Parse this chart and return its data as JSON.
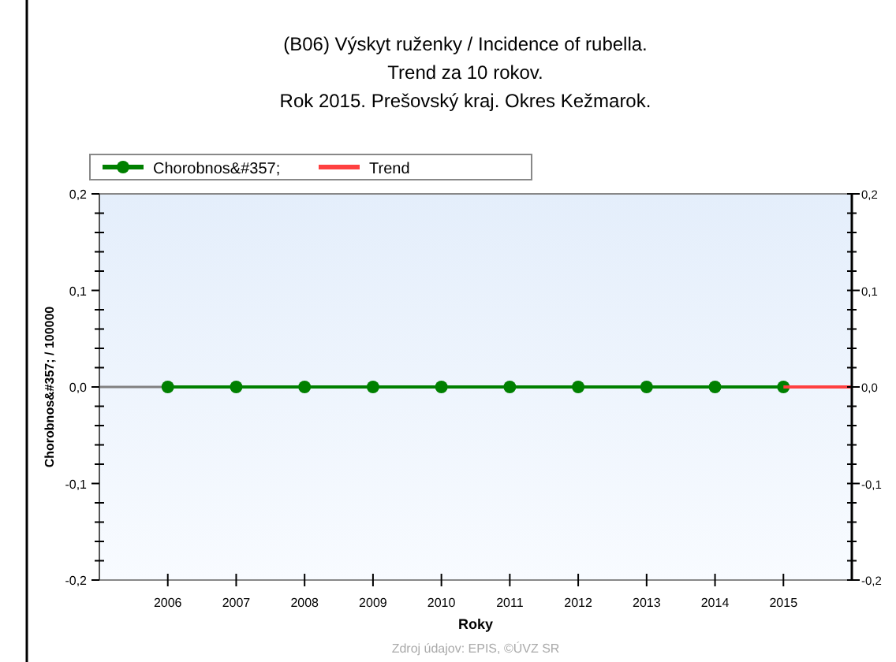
{
  "chart_data": {
    "type": "line",
    "title": "(B06) Výskyt ruženky / Incidence of rubella.\nTrend za 10 rokov.\nRok 2015. Prešovský kraj. Okres Kežmarok.",
    "xlabel": "Roky",
    "ylabel": "Chorobnos&#357; / 100000",
    "annotations": [
      "Zdroj údajov: EPIS, ©ÚVZ SR"
    ],
    "xlim": [
      2005,
      2016
    ],
    "xticks": [
      2006,
      2007,
      2008,
      2009,
      2010,
      2011,
      2012,
      2013,
      2014,
      2015
    ],
    "ylim": [
      -0.2,
      0.2
    ],
    "yticks": [
      {
        "value": -0.2,
        "label": "-0,2"
      },
      {
        "value": -0.18,
        "label": null
      },
      {
        "value": -0.16,
        "label": null
      },
      {
        "value": -0.14,
        "label": null
      },
      {
        "value": -0.12,
        "label": null
      },
      {
        "value": -0.1,
        "label": "-0,1"
      },
      {
        "value": -0.08,
        "label": null
      },
      {
        "value": -0.06,
        "label": null
      },
      {
        "value": -0.04,
        "label": null
      },
      {
        "value": -0.02,
        "label": null
      },
      {
        "value": 0,
        "label": "0,0"
      },
      {
        "value": 0.02,
        "label": null
      },
      {
        "value": 0.04,
        "label": null
      },
      {
        "value": 0.06,
        "label": null
      },
      {
        "value": 0.08,
        "label": null
      },
      {
        "value": 0.1,
        "label": "0,1"
      },
      {
        "value": 0.12,
        "label": null
      },
      {
        "value": 0.14,
        "label": null
      },
      {
        "value": 0.16,
        "label": null
      },
      {
        "value": 0.18,
        "label": null
      },
      {
        "value": 0.2,
        "label": "0,2"
      }
    ],
    "y2lim": [
      -0.2,
      0.2
    ],
    "y2ticks": [
      {
        "value": -0.2,
        "label": "-0,2"
      },
      {
        "value": -0.18,
        "label": null
      },
      {
        "value": -0.16,
        "label": null
      },
      {
        "value": -0.14,
        "label": null
      },
      {
        "value": -0.12,
        "label": null
      },
      {
        "value": -0.1,
        "label": "-0,1"
      },
      {
        "value": -0.08,
        "label": null
      },
      {
        "value": -0.06,
        "label": null
      },
      {
        "value": -0.04,
        "label": null
      },
      {
        "value": -0.02,
        "label": null
      },
      {
        "value": 0,
        "label": "0,0"
      },
      {
        "value": 0.02,
        "label": null
      },
      {
        "value": 0.04,
        "label": null
      },
      {
        "value": 0.06,
        "label": null
      },
      {
        "value": 0.08,
        "label": null
      },
      {
        "value": 0.1,
        "label": "0,1"
      },
      {
        "value": 0.12,
        "label": null
      },
      {
        "value": 0.14,
        "label": null
      },
      {
        "value": 0.16,
        "label": null
      },
      {
        "value": 0.18,
        "label": null
      },
      {
        "value": 0.2,
        "label": "0,2"
      }
    ],
    "ref_lines": [
      {
        "axis": "y",
        "value": 0,
        "color": "#808080"
      }
    ],
    "legend": "top left",
    "grid": false,
    "series": [
      {
        "name": "Chorobnos&#357;",
        "color": "#008000",
        "marker": "circle",
        "x": [
          2006,
          2007,
          2008,
          2009,
          2010,
          2011,
          2012,
          2013,
          2014,
          2015
        ],
        "values": [
          0,
          0,
          0,
          0,
          0,
          0,
          0,
          0,
          0,
          0
        ]
      },
      {
        "name": "Trend",
        "color": "#ff4040",
        "marker": "none",
        "x": [
          2015,
          2016
        ],
        "values": [
          0,
          0
        ]
      }
    ]
  }
}
